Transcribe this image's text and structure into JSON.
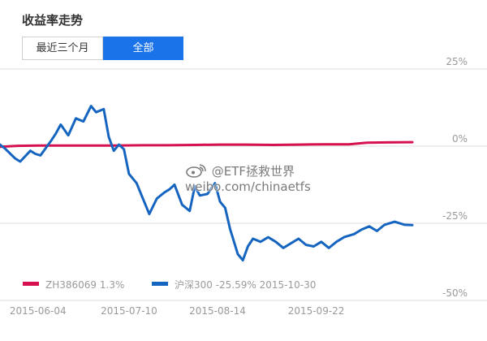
{
  "panel": {
    "title": "收益率走势",
    "tabs": [
      {
        "label": "最近三个月",
        "active": false
      },
      {
        "label": "全部",
        "active": true
      }
    ]
  },
  "watermark": {
    "line1": "@ETF拯救世界",
    "line2": "weibo.com/chinaetfs"
  },
  "chart_data": {
    "type": "line",
    "y_ticks": [
      "25%",
      "0%",
      "-25%",
      "-50%"
    ],
    "y_tick_values": [
      25,
      0,
      -25,
      -50
    ],
    "ylim": [
      -50,
      25
    ],
    "x_ticks": [
      "2015-06-04",
      "2015-07-10",
      "2015-08-14",
      "2015-09-22"
    ],
    "x_tick_values": [
      "2015-06-04",
      "2015-07-10",
      "2015-08-14",
      "2015-09-22"
    ],
    "xlim": [
      "2015-05-20",
      "2015-10-30"
    ],
    "grid": true,
    "legend_position": "bottom-left",
    "series": [
      {
        "name": "ZH386069",
        "legend_label": "ZH386069 1.3%",
        "color": "#d6114f",
        "dates": [
          "2015-05-20",
          "2015-05-27",
          "2015-06-05",
          "2015-06-15",
          "2015-06-25",
          "2015-07-05",
          "2015-07-15",
          "2015-07-25",
          "2015-08-05",
          "2015-08-15",
          "2015-08-25",
          "2015-09-05",
          "2015-09-15",
          "2015-09-25",
          "2015-10-05",
          "2015-10-12",
          "2015-10-20",
          "2015-10-30"
        ],
        "values": [
          -0.2,
          0.1,
          0.2,
          0.2,
          0.2,
          0.2,
          0.3,
          0.3,
          0.4,
          0.5,
          0.5,
          0.4,
          0.5,
          0.6,
          0.6,
          1.1,
          1.2,
          1.3
        ]
      },
      {
        "name": "沪深300",
        "legend_label": "沪深300 -25.59% 2015-10-30",
        "color": "#1565c0",
        "dates": [
          "2015-05-20",
          "2015-05-22",
          "2015-05-26",
          "2015-05-28",
          "2015-06-01",
          "2015-06-03",
          "2015-06-05",
          "2015-06-09",
          "2015-06-11",
          "2015-06-13",
          "2015-06-16",
          "2015-06-19",
          "2015-06-22",
          "2015-06-25",
          "2015-06-27",
          "2015-06-30",
          "2015-07-02",
          "2015-07-04",
          "2015-07-06",
          "2015-07-08",
          "2015-07-10",
          "2015-07-13",
          "2015-07-15",
          "2015-07-18",
          "2015-07-21",
          "2015-07-24",
          "2015-07-26",
          "2015-07-28",
          "2015-07-31",
          "2015-08-03",
          "2015-08-05",
          "2015-08-07",
          "2015-08-10",
          "2015-08-13",
          "2015-08-15",
          "2015-08-17",
          "2015-08-19",
          "2015-08-22",
          "2015-08-24",
          "2015-08-26",
          "2015-08-28",
          "2015-08-31",
          "2015-09-03",
          "2015-09-06",
          "2015-09-09",
          "2015-09-12",
          "2015-09-15",
          "2015-09-18",
          "2015-09-21",
          "2015-09-24",
          "2015-09-27",
          "2015-09-30",
          "2015-10-03",
          "2015-10-07",
          "2015-10-10",
          "2015-10-13",
          "2015-10-16",
          "2015-10-19",
          "2015-10-23",
          "2015-10-27",
          "2015-10-30"
        ],
        "values": [
          0.5,
          -0.8,
          -4.0,
          -5.0,
          -1.5,
          -2.5,
          -3.0,
          1.5,
          4.0,
          7.0,
          3.5,
          9.0,
          8.0,
          13.0,
          11.0,
          12.0,
          3.0,
          -1.5,
          0.5,
          -1.0,
          -9.0,
          -12.0,
          -16.0,
          -22.0,
          -17.0,
          -15.0,
          -14.0,
          -12.5,
          -19.0,
          -21.0,
          -13.0,
          -16.0,
          -15.5,
          -12.0,
          -18.0,
          -20.0,
          -27.0,
          -35.0,
          -37.0,
          -32.5,
          -30.0,
          -31.0,
          -29.5,
          -31.0,
          -33.0,
          -31.5,
          -30.0,
          -32.0,
          -32.5,
          -31.0,
          -33.0,
          -31.0,
          -29.5,
          -28.5,
          -27.0,
          -26.0,
          -27.5,
          -25.5,
          -24.5,
          -25.5,
          -25.59
        ]
      }
    ]
  }
}
